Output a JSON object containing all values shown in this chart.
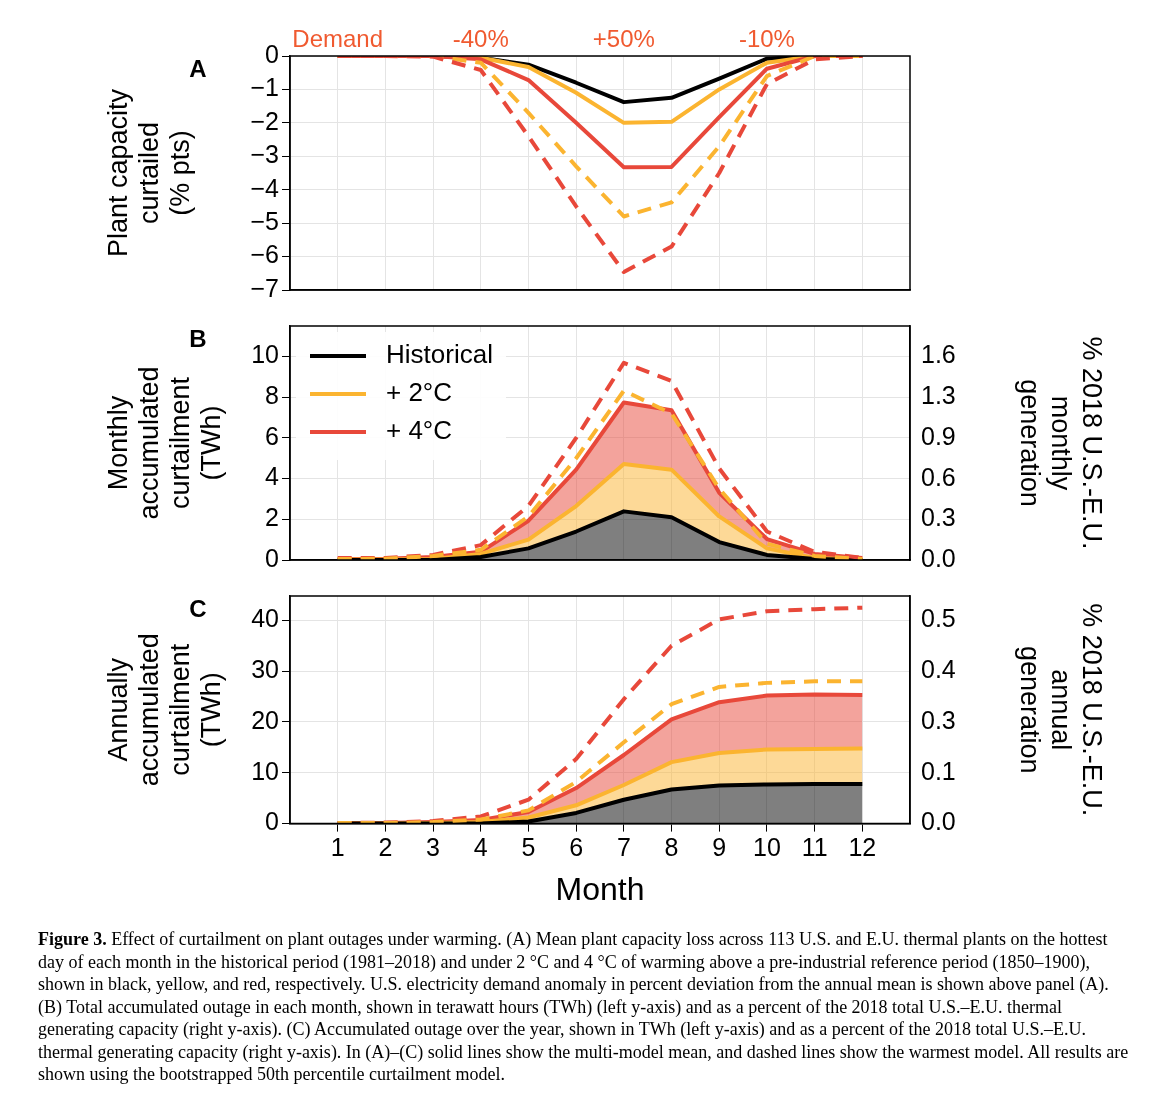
{
  "chart_data": [
    {
      "type": "line",
      "title": "A",
      "ylabel": "Plant capacity\ncurtailed\n(% pts)",
      "x": [
        1,
        2,
        3,
        4,
        5,
        6,
        7,
        8,
        9,
        10,
        11,
        12
      ],
      "xlim": [
        0,
        13
      ],
      "xticks": [
        1,
        2,
        3,
        4,
        5,
        6,
        7,
        8,
        9,
        10,
        11,
        12
      ],
      "ylim": [
        -7,
        0
      ],
      "yticks": [
        0,
        {
          "value": -1,
          "label": "−1"
        },
        {
          "value": -2,
          "label": "−2"
        },
        {
          "value": -3,
          "label": "−3"
        },
        {
          "value": -4,
          "label": "−4"
        },
        {
          "value": -5,
          "label": "−5"
        },
        {
          "value": -6,
          "label": "−6"
        },
        {
          "value": -7,
          "label": "−7"
        }
      ],
      "grid": true,
      "tick_labels": "y",
      "annotations": [
        "Demand",
        "-40%",
        "+50%",
        "-10%"
      ],
      "series": [
        {
          "color": "#e8483a",
          "line_style": "dashed",
          "values": [
            0,
            0,
            -0.02,
            -0.42,
            -2.4,
            -4.5,
            -6.46,
            -5.7,
            -3.5,
            -0.84,
            -0.1,
            0
          ]
        },
        {
          "color": "#fbb430",
          "line_style": "dashed",
          "values": [
            0,
            0,
            0,
            -0.2,
            -1.7,
            -3.3,
            -4.8,
            -4.38,
            -2.7,
            -0.6,
            0,
            0
          ]
        },
        {
          "color": "#e8483a",
          "line_style": "solid",
          "values": [
            0,
            0,
            0,
            -0.1,
            -0.72,
            -2.0,
            -3.33,
            -3.32,
            -1.83,
            -0.38,
            0,
            0
          ]
        },
        {
          "color": "#fbb430",
          "line_style": "solid",
          "values": [
            0,
            0,
            0,
            -0.05,
            -0.33,
            -1.1,
            -2.0,
            -1.97,
            -1.0,
            -0.2,
            0,
            0
          ]
        },
        {
          "color": "#000000",
          "line_style": "solid",
          "values": [
            0,
            0,
            0,
            -0.05,
            -0.26,
            -0.8,
            -1.38,
            -1.25,
            -0.68,
            -0.08,
            0,
            0
          ]
        }
      ]
    },
    {
      "type": "area",
      "title": "B",
      "ylabel": "Monthly\naccumulated\ncurtailment\n(TWh)",
      "y2label": "% 2018 U.S.-E.U.\nmonthly\ngeneration",
      "x": [
        1,
        2,
        3,
        4,
        5,
        6,
        7,
        8,
        9,
        10,
        11,
        12
      ],
      "xlim": [
        0,
        13
      ],
      "xticks": [
        1,
        2,
        3,
        4,
        5,
        6,
        7,
        8,
        9,
        10,
        11,
        12
      ],
      "ylim": [
        0,
        11.5
      ],
      "yticks": [
        0,
        2,
        4,
        6,
        8,
        10
      ],
      "y2lim": [
        0,
        1.806
      ],
      "y2ticks": [
        {
          "value": 0,
          "label": "0.0"
        },
        {
          "value": 0.314,
          "label": "0.3"
        },
        {
          "value": 0.628,
          "label": "0.6"
        },
        {
          "value": 0.942,
          "label": "0.9"
        },
        {
          "value": 1.256,
          "label": "1.3"
        },
        {
          "value": 1.57,
          "label": "1.6"
        }
      ],
      "grid": true,
      "tick_labels": "y",
      "legend": "top left",
      "series": [
        {
          "name": "Historical",
          "color": "#000000",
          "values": [
            0,
            0,
            0,
            0.15,
            0.57,
            1.4,
            2.39,
            2.1,
            0.88,
            0.25,
            0.05,
            0
          ]
        },
        {
          "name": "+ 2°C",
          "color": "#fbb430",
          "values": [
            0.02,
            0.03,
            0.05,
            0.3,
            1.0,
            2.65,
            4.72,
            4.44,
            2.14,
            0.57,
            0.1,
            0.02
          ]
        },
        {
          "name": "+ 4°C",
          "color": "#e8483a",
          "values": [
            0.05,
            0.06,
            0.15,
            0.4,
            1.93,
            4.44,
            7.74,
            7.36,
            3.3,
            1.03,
            0.3,
            0.1
          ]
        },
        {
          "type": "line",
          "color": "#fbb430",
          "line_style": "dashed",
          "values": [
            0.05,
            0.06,
            0.2,
            0.5,
            2.14,
            5.0,
            8.32,
            7.2,
            3.5,
            0.8,
            0.2,
            0.05
          ]
        },
        {
          "type": "line",
          "color": "#e8483a",
          "line_style": "dashed",
          "values": [
            0.1,
            0.1,
            0.25,
            0.73,
            2.66,
            6.0,
            9.69,
            8.8,
            4.5,
            1.4,
            0.4,
            0.1
          ]
        }
      ]
    },
    {
      "type": "area",
      "title": "C",
      "ylabel": "Annually\naccumulated\ncurtailment\n(TWh)",
      "y2label": "% 2018 U.S.-E.U.\nannual\ngeneration",
      "xlabel": "Month",
      "x": [
        1,
        2,
        3,
        4,
        5,
        6,
        7,
        8,
        9,
        10,
        11,
        12
      ],
      "xlim": [
        0,
        13
      ],
      "xticks": [
        1,
        2,
        3,
        4,
        5,
        6,
        7,
        8,
        9,
        10,
        11,
        12
      ],
      "ylim": [
        0,
        44.8
      ],
      "yticks": [
        0,
        10,
        20,
        30,
        40
      ],
      "y2lim": [
        0,
        0.5824
      ],
      "y2ticks": [
        {
          "value": 0,
          "label": "0.0"
        },
        {
          "value": 0.13,
          "label": "0.1"
        },
        {
          "value": 0.26,
          "label": "0.3"
        },
        {
          "value": 0.39,
          "label": "0.4"
        },
        {
          "value": 0.52,
          "label": "0.5"
        }
      ],
      "grid": true,
      "annotations": [
        "Figure 3. Effect of curtailment on plant outages under warming. (A) Mean plant capacity loss across 113 U.S. and E.U. thermal plants on the hottest day of each month in the historical period (1981–2018) and under 2 °C and 4 °C of warming above a pre-industrial reference period (1850–1900), shown in black, yellow, and red, respectively. U.S. electricity demand anomaly in percent deviation from the annual mean is shown above panel (A). (B) Total accumulated outage in each month, shown in terawatt hours (TWh) (left y-axis) and as a percent of the 2018 total U.S.–E.U. thermal generating capacity (right y-axis). (C) Accumulated outage over the year, shown in TWh (left y-axis) and as a percent of the 2018 total U.S.–E.U. thermal generating capacity (right y-axis). In (A)–(C) solid lines show the multi-model mean, and dashed lines show the warmest model. All results are shown using the bootstrapped 50th percentile curtailment model."
      ],
      "series": [
        {
          "color": "#000000",
          "values": [
            0,
            0,
            0,
            0,
            0.4,
            2.1,
            4.7,
            6.7,
            7.5,
            7.7,
            7.8,
            7.8
          ]
        },
        {
          "color": "#fbb430",
          "values": [
            0,
            0,
            0.1,
            0.3,
            1.2,
            3.6,
            7.6,
            12.1,
            13.9,
            14.6,
            14.7,
            14.8
          ]
        },
        {
          "color": "#e8483a",
          "values": [
            0.1,
            0.1,
            0.3,
            0.7,
            2.3,
            7.0,
            13.5,
            20.5,
            23.9,
            25.2,
            25.4,
            25.3
          ]
        },
        {
          "type": "line",
          "color": "#fbb430",
          "line_style": "dashed",
          "values": [
            0.1,
            0.1,
            0.3,
            0.8,
            2.6,
            8.2,
            16.0,
            23.5,
            26.9,
            27.7,
            28.0,
            28.0
          ]
        },
        {
          "type": "line",
          "color": "#e8483a",
          "line_style": "dashed",
          "values": [
            0.1,
            0.2,
            0.5,
            1.4,
            4.7,
            12.7,
            24.5,
            35.0,
            40.2,
            41.8,
            42.2,
            42.5
          ]
        }
      ]
    }
  ]
}
